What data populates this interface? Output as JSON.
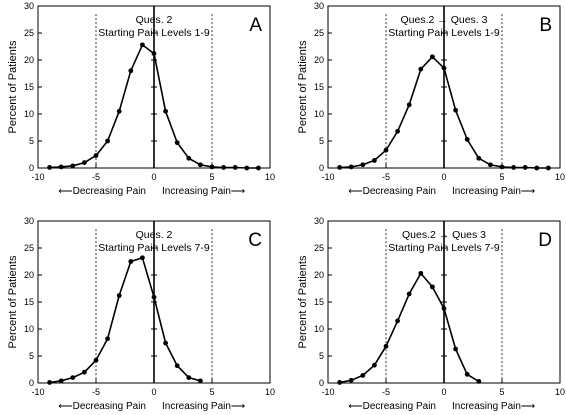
{
  "chart_data": [
    {
      "type": "line",
      "panel_letter": "A",
      "title": "Ques. 2",
      "subtitle": "Starting Pain Levels 1-9",
      "ylabel": "Percent of Patients",
      "xlabel_left": "⟵Decreasing Pain",
      "xlabel_right": "Increasing Pain⟶",
      "xlim": [
        -10,
        10
      ],
      "ylim": [
        0,
        30
      ],
      "xticks": [
        -10,
        -5,
        0,
        5,
        10
      ],
      "yticks": [
        0,
        5,
        10,
        15,
        20,
        25,
        30
      ],
      "reference_lines": [
        -5,
        5
      ],
      "points": [
        {
          "x": -9,
          "y": 0.1
        },
        {
          "x": -8,
          "y": 0.2
        },
        {
          "x": -7,
          "y": 0.4
        },
        {
          "x": -6,
          "y": 1.0
        },
        {
          "x": -5,
          "y": 2.3
        },
        {
          "x": -4,
          "y": 5.0
        },
        {
          "x": -3,
          "y": 10.5
        },
        {
          "x": -2,
          "y": 18.0
        },
        {
          "x": -1,
          "y": 22.8
        },
        {
          "x": 0,
          "y": 21.2
        },
        {
          "x": 1,
          "y": 10.5
        },
        {
          "x": 2,
          "y": 4.7
        },
        {
          "x": 3,
          "y": 1.8
        },
        {
          "x": 4,
          "y": 0.6
        },
        {
          "x": 5,
          "y": 0.2
        },
        {
          "x": 6,
          "y": 0.1
        },
        {
          "x": 7,
          "y": 0.1
        },
        {
          "x": 8,
          "y": 0.0
        },
        {
          "x": 9,
          "y": 0.0
        }
      ]
    },
    {
      "type": "line",
      "panel_letter": "B",
      "title": "Ques.2 → Ques. 3",
      "subtitle": "Starting Pain Levels 1-9",
      "ylabel": "Percent of Patients",
      "xlabel_left": "⟵Decreasing Pain",
      "xlabel_right": "Increasing Pain⟶",
      "xlim": [
        -10,
        10
      ],
      "ylim": [
        0,
        30
      ],
      "xticks": [
        -10,
        -5,
        0,
        5,
        10
      ],
      "yticks": [
        0,
        5,
        10,
        15,
        20,
        25,
        30
      ],
      "reference_lines": [
        -5,
        5
      ],
      "points": [
        {
          "x": -9,
          "y": 0.1
        },
        {
          "x": -8,
          "y": 0.2
        },
        {
          "x": -7,
          "y": 0.6
        },
        {
          "x": -6,
          "y": 1.4
        },
        {
          "x": -5,
          "y": 3.3
        },
        {
          "x": -4,
          "y": 6.8
        },
        {
          "x": -3,
          "y": 11.7
        },
        {
          "x": -2,
          "y": 18.3
        },
        {
          "x": -1,
          "y": 20.6
        },
        {
          "x": 0,
          "y": 18.5
        },
        {
          "x": 1,
          "y": 10.7
        },
        {
          "x": 2,
          "y": 5.3
        },
        {
          "x": 3,
          "y": 1.8
        },
        {
          "x": 4,
          "y": 0.6
        },
        {
          "x": 5,
          "y": 0.2
        },
        {
          "x": 6,
          "y": 0.1
        },
        {
          "x": 7,
          "y": 0.1
        },
        {
          "x": 8,
          "y": 0.0
        },
        {
          "x": 9,
          "y": 0.0
        }
      ]
    },
    {
      "type": "line",
      "panel_letter": "C",
      "title": "Ques. 2",
      "subtitle": "Starting Pain Levels 7-9",
      "ylabel": "Percent of Patients",
      "xlabel_left": "⟵Decreasing Pain",
      "xlabel_right": "Increasing Pain⟶",
      "xlim": [
        -10,
        10
      ],
      "ylim": [
        0,
        30
      ],
      "xticks": [
        -10,
        -5,
        0,
        5,
        10
      ],
      "yticks": [
        0,
        5,
        10,
        15,
        20,
        25,
        30
      ],
      "reference_lines": [
        -5,
        5
      ],
      "points": [
        {
          "x": -9,
          "y": 0.1
        },
        {
          "x": -8,
          "y": 0.4
        },
        {
          "x": -7,
          "y": 1.0
        },
        {
          "x": -6,
          "y": 2.0
        },
        {
          "x": -5,
          "y": 4.2
        },
        {
          "x": -4,
          "y": 8.2
        },
        {
          "x": -3,
          "y": 16.2
        },
        {
          "x": -2,
          "y": 22.5
        },
        {
          "x": -1,
          "y": 23.2
        },
        {
          "x": 0,
          "y": 15.9
        },
        {
          "x": 1,
          "y": 7.4
        },
        {
          "x": 2,
          "y": 3.2
        },
        {
          "x": 3,
          "y": 1.0
        },
        {
          "x": 4,
          "y": 0.4
        }
      ]
    },
    {
      "type": "line",
      "panel_letter": "D",
      "title": "Ques.2 → Ques 3",
      "subtitle": "Starting Pain Levels 7-9",
      "ylabel": "Percent of Patients",
      "xlabel_left": "⟵Decreasing Pain",
      "xlabel_right": "Increasing Pain⟶",
      "xlim": [
        -10,
        10
      ],
      "ylim": [
        0,
        30
      ],
      "xticks": [
        -10,
        -5,
        0,
        5,
        10
      ],
      "yticks": [
        0,
        5,
        10,
        15,
        20,
        25,
        30
      ],
      "reference_lines": [
        -5,
        5
      ],
      "points": [
        {
          "x": -9,
          "y": 0.1
        },
        {
          "x": -8,
          "y": 0.5
        },
        {
          "x": -7,
          "y": 1.4
        },
        {
          "x": -6,
          "y": 3.3
        },
        {
          "x": -5,
          "y": 6.8
        },
        {
          "x": -4,
          "y": 11.5
        },
        {
          "x": -3,
          "y": 16.5
        },
        {
          "x": -2,
          "y": 20.3
        },
        {
          "x": -1,
          "y": 17.8
        },
        {
          "x": 0,
          "y": 13.8
        },
        {
          "x": 1,
          "y": 6.3
        },
        {
          "x": 2,
          "y": 1.6
        },
        {
          "x": 3,
          "y": 0.3
        }
      ]
    }
  ]
}
